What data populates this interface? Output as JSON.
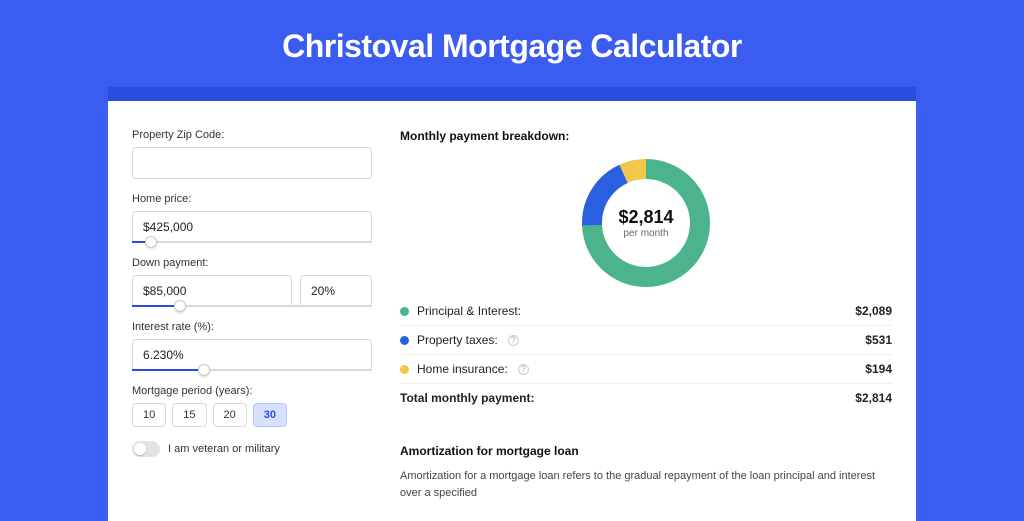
{
  "page": {
    "title": "Christoval Mortgage Calculator",
    "background_color": "#3a5cf0",
    "band_color": "#2a4de0",
    "card_color": "#ffffff"
  },
  "form": {
    "zip": {
      "label": "Property Zip Code:",
      "value": ""
    },
    "home_price": {
      "label": "Home price:",
      "value": "$425,000",
      "slider_pct": 8
    },
    "down_payment": {
      "label": "Down payment:",
      "amount": "$85,000",
      "percent": "20%",
      "slider_pct": 20
    },
    "interest_rate": {
      "label": "Interest rate (%):",
      "value": "6.230%",
      "slider_pct": 30
    },
    "period": {
      "label": "Mortgage period (years):",
      "options": [
        "10",
        "15",
        "20",
        "30"
      ],
      "selected": "30"
    },
    "veteran": {
      "label": "I am veteran or military",
      "checked": false
    }
  },
  "breakdown": {
    "title": "Monthly payment breakdown:",
    "total_label": "per month",
    "total_value": "$2,814",
    "donut": {
      "size": 128,
      "thickness": 20,
      "slices": [
        {
          "key": "principal_interest",
          "value": 2089,
          "color": "#4bb48a"
        },
        {
          "key": "property_taxes",
          "value": 531,
          "color": "#2a5fe0"
        },
        {
          "key": "home_insurance",
          "value": 194,
          "color": "#f1c84c"
        }
      ]
    },
    "legend": [
      {
        "key": "principal_interest",
        "label": "Principal & Interest:",
        "value": "$2,089",
        "color": "#4bb48a",
        "info": false
      },
      {
        "key": "property_taxes",
        "label": "Property taxes:",
        "value": "$531",
        "color": "#2a5fe0",
        "info": true
      },
      {
        "key": "home_insurance",
        "label": "Home insurance:",
        "value": "$194",
        "color": "#f1c84c",
        "info": true
      }
    ],
    "total_row": {
      "label": "Total monthly payment:",
      "value": "$2,814"
    }
  },
  "amortization": {
    "title": "Amortization for mortgage loan",
    "text": "Amortization for a mortgage loan refers to the gradual repayment of the loan principal and interest over a specified"
  }
}
